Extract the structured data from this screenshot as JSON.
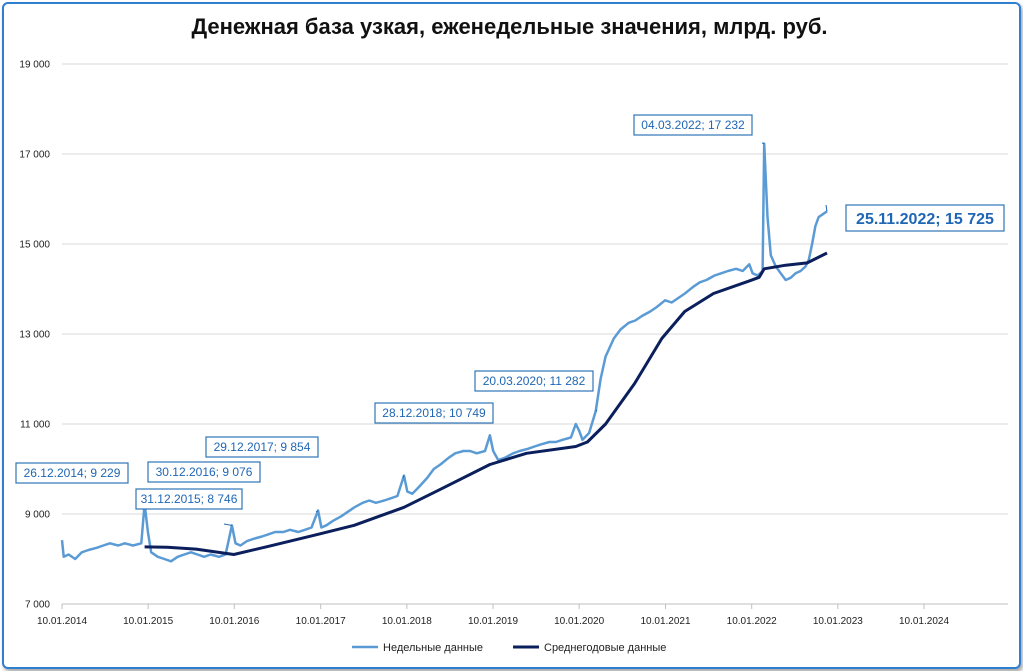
{
  "chart_data": {
    "type": "line",
    "title": "Денежная база узкая, еженедельные значения, млрд. руб.",
    "xlabel": "",
    "ylabel": "",
    "ylim": [
      7000,
      19000
    ],
    "y_ticks": [
      "7 000",
      "9 000",
      "11 000",
      "13 000",
      "15 000",
      "17 000",
      "19 000"
    ],
    "x_ticks": [
      "10.01.2014",
      "10.01.2015",
      "10.01.2016",
      "10.01.2017",
      "10.01.2018",
      "10.01.2019",
      "10.01.2020",
      "10.01.2021",
      "10.01.2022",
      "10.01.2023",
      "10.01.2024"
    ],
    "x_tick_dates": [
      "2014-01-10",
      "2015-01-10",
      "2016-01-10",
      "2017-01-10",
      "2018-01-10",
      "2019-01-10",
      "2020-01-10",
      "2021-01-10",
      "2022-01-10",
      "2023-01-10",
      "2024-01-10"
    ],
    "grid": "horizontal",
    "legend_position": "bottom",
    "series": [
      {
        "name": "Недельные данные",
        "color": "#5b9bd5",
        "points": [
          [
            "2014-01-10",
            8420
          ],
          [
            "2014-01-17",
            8050
          ],
          [
            "2014-02-07",
            8100
          ],
          [
            "2014-03-07",
            8000
          ],
          [
            "2014-04-04",
            8150
          ],
          [
            "2014-05-02",
            8200
          ],
          [
            "2014-06-06",
            8250
          ],
          [
            "2014-07-04",
            8300
          ],
          [
            "2014-08-01",
            8350
          ],
          [
            "2014-09-05",
            8300
          ],
          [
            "2014-10-03",
            8350
          ],
          [
            "2014-11-07",
            8300
          ],
          [
            "2014-12-12",
            8350
          ],
          [
            "2014-12-26",
            9229
          ],
          [
            "2015-01-09",
            8600
          ],
          [
            "2015-01-23",
            8150
          ],
          [
            "2015-02-20",
            8050
          ],
          [
            "2015-03-20",
            8000
          ],
          [
            "2015-04-17",
            7950
          ],
          [
            "2015-05-15",
            8050
          ],
          [
            "2015-06-12",
            8100
          ],
          [
            "2015-07-10",
            8150
          ],
          [
            "2015-08-07",
            8100
          ],
          [
            "2015-09-04",
            8050
          ],
          [
            "2015-10-02",
            8100
          ],
          [
            "2015-11-06",
            8050
          ],
          [
            "2015-12-04",
            8100
          ],
          [
            "2015-12-31",
            8746
          ],
          [
            "2016-01-15",
            8350
          ],
          [
            "2016-02-05",
            8300
          ],
          [
            "2016-03-04",
            8400
          ],
          [
            "2016-04-01",
            8450
          ],
          [
            "2016-05-06",
            8500
          ],
          [
            "2016-06-03",
            8550
          ],
          [
            "2016-07-01",
            8600
          ],
          [
            "2016-08-05",
            8600
          ],
          [
            "2016-09-02",
            8650
          ],
          [
            "2016-10-07",
            8600
          ],
          [
            "2016-11-04",
            8650
          ],
          [
            "2016-12-02",
            8700
          ],
          [
            "2016-12-30",
            9076
          ],
          [
            "2017-01-13",
            8700
          ],
          [
            "2017-02-03",
            8750
          ],
          [
            "2017-03-03",
            8850
          ],
          [
            "2017-04-07",
            8950
          ],
          [
            "2017-05-05",
            9050
          ],
          [
            "2017-06-02",
            9150
          ],
          [
            "2017-07-07",
            9250
          ],
          [
            "2017-08-04",
            9300
          ],
          [
            "2017-09-01",
            9250
          ],
          [
            "2017-10-06",
            9300
          ],
          [
            "2017-11-03",
            9350
          ],
          [
            "2017-12-01",
            9400
          ],
          [
            "2017-12-29",
            9854
          ],
          [
            "2018-01-12",
            9500
          ],
          [
            "2018-02-02",
            9450
          ],
          [
            "2018-03-02",
            9600
          ],
          [
            "2018-04-06",
            9800
          ],
          [
            "2018-05-04",
            10000
          ],
          [
            "2018-06-01",
            10100
          ],
          [
            "2018-07-06",
            10250
          ],
          [
            "2018-08-03",
            10350
          ],
          [
            "2018-09-07",
            10400
          ],
          [
            "2018-10-05",
            10400
          ],
          [
            "2018-11-02",
            10350
          ],
          [
            "2018-12-07",
            10400
          ],
          [
            "2018-12-28",
            10749
          ],
          [
            "2019-01-11",
            10400
          ],
          [
            "2019-02-01",
            10200
          ],
          [
            "2019-03-01",
            10250
          ],
          [
            "2019-04-05",
            10350
          ],
          [
            "2019-05-03",
            10400
          ],
          [
            "2019-06-07",
            10450
          ],
          [
            "2019-07-05",
            10500
          ],
          [
            "2019-08-02",
            10550
          ],
          [
            "2019-09-06",
            10600
          ],
          [
            "2019-10-04",
            10600
          ],
          [
            "2019-11-01",
            10650
          ],
          [
            "2019-12-06",
            10700
          ],
          [
            "2019-12-27",
            11000
          ],
          [
            "2020-01-10",
            10850
          ],
          [
            "2020-01-24",
            10650
          ],
          [
            "2020-02-21",
            10800
          ],
          [
            "2020-03-20",
            11282
          ],
          [
            "2020-04-10",
            12000
          ],
          [
            "2020-05-01",
            12500
          ],
          [
            "2020-06-05",
            12900
          ],
          [
            "2020-07-03",
            13100
          ],
          [
            "2020-08-07",
            13250
          ],
          [
            "2020-09-04",
            13300
          ],
          [
            "2020-10-02",
            13400
          ],
          [
            "2020-11-06",
            13500
          ],
          [
            "2020-12-04",
            13600
          ],
          [
            "2021-01-08",
            13750
          ],
          [
            "2021-02-05",
            13700
          ],
          [
            "2021-03-05",
            13800
          ],
          [
            "2021-04-02",
            13900
          ],
          [
            "2021-05-07",
            14050
          ],
          [
            "2021-06-04",
            14150
          ],
          [
            "2021-07-02",
            14200
          ],
          [
            "2021-08-06",
            14300
          ],
          [
            "2021-09-03",
            14350
          ],
          [
            "2021-10-01",
            14400
          ],
          [
            "2021-11-05",
            14450
          ],
          [
            "2021-12-03",
            14400
          ],
          [
            "2021-12-31",
            14550
          ],
          [
            "2022-01-14",
            14350
          ],
          [
            "2022-02-04",
            14300
          ],
          [
            "2022-02-25",
            14400
          ],
          [
            "2022-03-04",
            17232
          ],
          [
            "2022-03-18",
            15600
          ],
          [
            "2022-04-01",
            14750
          ],
          [
            "2022-04-22",
            14500
          ],
          [
            "2022-05-13",
            14350
          ],
          [
            "2022-06-03",
            14200
          ],
          [
            "2022-06-24",
            14250
          ],
          [
            "2022-07-15",
            14350
          ],
          [
            "2022-08-05",
            14400
          ],
          [
            "2022-08-26",
            14500
          ],
          [
            "2022-09-09",
            14650
          ],
          [
            "2022-09-23",
            15000
          ],
          [
            "2022-10-07",
            15400
          ],
          [
            "2022-10-21",
            15600
          ],
          [
            "2022-11-04",
            15650
          ],
          [
            "2022-11-18",
            15700
          ],
          [
            "2022-11-25",
            15725
          ]
        ]
      },
      {
        "name": "Среднегодовые данные",
        "color": "#0b1f5c",
        "points": [
          [
            "2014-12-26",
            8270
          ],
          [
            "2015-04-01",
            8260
          ],
          [
            "2015-08-01",
            8220
          ],
          [
            "2016-01-08",
            8100
          ],
          [
            "2016-06-01",
            8280
          ],
          [
            "2016-12-30",
            8550
          ],
          [
            "2017-06-01",
            8750
          ],
          [
            "2017-12-29",
            9150
          ],
          [
            "2018-06-01",
            9550
          ],
          [
            "2018-12-28",
            10100
          ],
          [
            "2019-06-01",
            10350
          ],
          [
            "2019-12-27",
            10500
          ],
          [
            "2020-02-14",
            10600
          ],
          [
            "2020-05-01",
            11000
          ],
          [
            "2020-09-01",
            11900
          ],
          [
            "2020-12-25",
            12900
          ],
          [
            "2021-04-01",
            13500
          ],
          [
            "2021-08-01",
            13900
          ],
          [
            "2021-12-31",
            14180
          ],
          [
            "2022-02-11",
            14260
          ],
          [
            "2022-03-04",
            14450
          ],
          [
            "2022-06-03",
            14530
          ],
          [
            "2022-09-02",
            14580
          ],
          [
            "2022-11-25",
            14800
          ]
        ]
      }
    ],
    "annotations": [
      {
        "date": "2014-12-26",
        "value": 9229,
        "label": "26.12.2014; 9 229"
      },
      {
        "date": "2015-12-31",
        "value": 8746,
        "label": "31.12.2015; 8 746"
      },
      {
        "date": "2016-12-30",
        "value": 9076,
        "label": "30.12.2016; 9 076"
      },
      {
        "date": "2017-12-29",
        "value": 9854,
        "label": "29.12.2017; 9 854"
      },
      {
        "date": "2018-12-28",
        "value": 10749,
        "label": "28.12.2018; 10 749"
      },
      {
        "date": "2020-03-20",
        "value": 11282,
        "label": "20.03.2020; 11 282"
      },
      {
        "date": "2022-03-04",
        "value": 17232,
        "label": "04.03.2022; 17 232"
      },
      {
        "date": "2022-11-25",
        "value": 15725,
        "label": "25.11.2022; 15 725",
        "emphasis": true
      }
    ]
  }
}
